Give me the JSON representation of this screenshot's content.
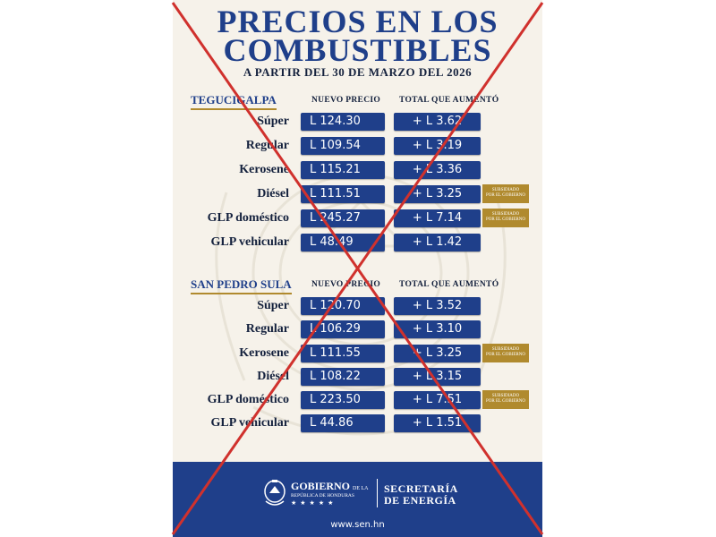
{
  "title_line1": "PRECIOS EN LOS",
  "title_line2": "COMBUSTIBLES",
  "subtitle": "A PARTIR DEL 30 DE MARZO DEL 2026",
  "col_new_price": "NUEVO PRECIO",
  "col_increase": "TOTAL QUE AUMENTÓ",
  "subsidy_line1": "SUBSIDIADO",
  "subsidy_line2": "POR EL GOBIERNO",
  "tegucigalpa": {
    "city": "TEGUCIGALPA",
    "rows": [
      {
        "fuel": "Súper",
        "price": "L 124.30",
        "increase": "+ L 3.62"
      },
      {
        "fuel": "Regular",
        "price": "L 109.54",
        "increase": "+ L 3.19"
      },
      {
        "fuel": "Kerosene",
        "price": "L 115.21",
        "increase": "+ L 3.36"
      },
      {
        "fuel": "Diésel",
        "price": "L 111.51",
        "increase": "+ L 3.25"
      },
      {
        "fuel": "GLP doméstico",
        "price": "L 245.27",
        "increase": "+ L 7.14"
      },
      {
        "fuel": "GLP vehicular",
        "price": "L 48.49",
        "increase": "+ L 1.42"
      }
    ]
  },
  "san_pedro_sula": {
    "city": "SAN PEDRO SULA",
    "rows": [
      {
        "fuel": "Súper",
        "price": "L 120.70",
        "increase": "+ L 3.52"
      },
      {
        "fuel": "Regular",
        "price": "L 106.29",
        "increase": "+ L 3.10"
      },
      {
        "fuel": "Kerosene",
        "price": "L 111.55",
        "increase": "+ L 3.25"
      },
      {
        "fuel": "Diésel",
        "price": "L 108.22",
        "increase": "+ L 3.15"
      },
      {
        "fuel": "GLP doméstico",
        "price": "L 223.50",
        "increase": "+ L 7.51"
      },
      {
        "fuel": "GLP vehicular",
        "price": "L 44.86",
        "increase": "+ L 1.51"
      }
    ]
  },
  "footer": {
    "gobierno": "GOBIERNO",
    "de_la": "DE LA",
    "republica": "REPÚBLICA DE HONDURAS",
    "stars": "★★★★★",
    "secretaria": "SECRETARÍA",
    "energia": "DE ENERGÍA",
    "website": "www.sen.hn"
  },
  "colors": {
    "primary_blue": "#1f3f8a",
    "gold": "#b08a2e",
    "cross_red": "#d0312d",
    "poster_bg": "#f6f2ea"
  },
  "icons": [
    "honduras-coat-of-arms-icon",
    "red-cross-out-mark"
  ]
}
